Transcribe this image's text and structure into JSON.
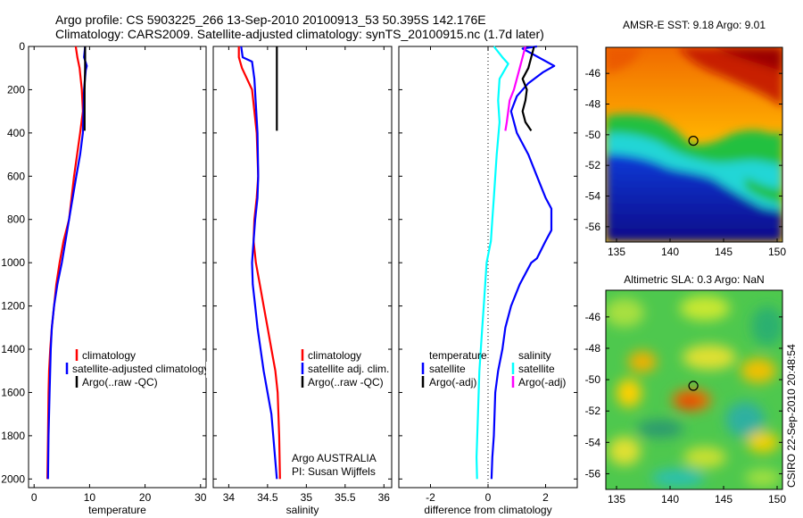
{
  "header": {
    "line1": "Argo profile: CS 5903225_266 13-Sep-2010 20100913_53 50.395S 142.176E",
    "line2": "Climatology: CARS2009. Satellite-adjusted climatology: synTS_20100915.nc (1.7d later)"
  },
  "credit": "CSIRO 22-Sep-2010 20:48:54",
  "colors": {
    "red": "#ff0000",
    "blue": "#0000ff",
    "black": "#000000",
    "cyan": "#00ffff",
    "magenta": "#ff00ff"
  },
  "chart_data": [
    {
      "type": "line",
      "xlabel": "temperature",
      "xlim": [
        -1,
        31
      ],
      "xticks": [
        0,
        10,
        20,
        30
      ],
      "ylim": [
        2040,
        0
      ],
      "yticks": [
        0,
        200,
        400,
        600,
        800,
        1000,
        1200,
        1400,
        1600,
        1800,
        2000
      ],
      "legend": [
        "climatology",
        "satellite-adjusted climatology",
        "Argo(..raw -QC)"
      ],
      "series": [
        {
          "name": "climatology",
          "color": "#ff0000",
          "x": [
            7.5,
            7.8,
            8.2,
            8.6,
            8.8,
            8.3,
            7.2,
            6.3,
            5.3,
            4.6,
            4.0,
            3.6,
            3.2,
            2.9,
            2.7,
            2.6,
            2.5,
            2.4
          ],
          "y": [
            0,
            50,
            100,
            200,
            300,
            400,
            600,
            800,
            900,
            1000,
            1100,
            1200,
            1300,
            1400,
            1500,
            1600,
            1800,
            2000
          ]
        },
        {
          "name": "satellite-adjusted climatology",
          "color": "#0000ff",
          "x": [
            9.2,
            9.0,
            9.5,
            9.3,
            9.0,
            8.8,
            8.3,
            7.6,
            6.3,
            5.0,
            4.2,
            3.6,
            3.2,
            3.0,
            2.8,
            2.6,
            2.5
          ],
          "y": [
            0,
            50,
            90,
            110,
            200,
            400,
            500,
            600,
            800,
            1000,
            1100,
            1200,
            1300,
            1400,
            1600,
            1800,
            2000
          ]
        },
        {
          "name": "Argo(..raw -QC)",
          "color": "#000000",
          "x": [
            9.2,
            9.2,
            9.1,
            9.1
          ],
          "y": [
            0,
            100,
            200,
            390
          ]
        }
      ]
    },
    {
      "type": "line",
      "xlabel": "salinity",
      "xlim": [
        33.8,
        36.1
      ],
      "xticks": [
        34,
        34.5,
        35,
        35.5,
        36
      ],
      "ylim": [
        2040,
        0
      ],
      "yticks": [
        0,
        200,
        400,
        600,
        800,
        1000,
        1200,
        1400,
        1600,
        1800,
        2000
      ],
      "legend": [
        "climatology",
        "satellite adj. clim.",
        "Argo(..raw -QC)"
      ],
      "series": [
        {
          "name": "climatology",
          "color": "#ff0000",
          "x": [
            34.13,
            34.13,
            34.17,
            34.3,
            34.36,
            34.38,
            34.36,
            34.33,
            34.32,
            34.35,
            34.4,
            34.45,
            34.5,
            34.55,
            34.6,
            34.63,
            34.65,
            34.66
          ],
          "y": [
            0,
            50,
            100,
            200,
            400,
            600,
            700,
            800,
            900,
            1000,
            1100,
            1200,
            1300,
            1400,
            1500,
            1600,
            1800,
            2000
          ]
        },
        {
          "name": "satellite adj. clim.",
          "color": "#0000ff",
          "x": [
            34.16,
            34.18,
            34.3,
            34.33,
            34.37,
            34.38,
            34.37,
            34.34,
            34.32,
            34.3,
            34.31,
            34.34,
            34.37,
            34.45,
            34.55,
            34.62
          ],
          "y": [
            0,
            50,
            70,
            150,
            400,
            600,
            700,
            800,
            900,
            1000,
            1100,
            1200,
            1300,
            1500,
            1700,
            2000
          ]
        },
        {
          "name": "Argo(..raw -QC)",
          "color": "#000000",
          "x": [
            34.62,
            34.62,
            34.62,
            34.62
          ],
          "y": [
            0,
            100,
            200,
            390
          ]
        }
      ]
    },
    {
      "type": "line",
      "xlabel": "difference from climatology",
      "xlim": [
        -3.1,
        3.1
      ],
      "xticks": [
        -2,
        0,
        2
      ],
      "ylim": [
        2040,
        0
      ],
      "yticks": [
        0,
        200,
        400,
        600,
        800,
        1000,
        1200,
        1400,
        1600,
        1800,
        2000
      ],
      "legend_groups": [
        {
          "title": "temperature",
          "items": [
            "satellite",
            "Argo(-adj)"
          ]
        },
        {
          "title": "salinity",
          "items": [
            "satellite",
            "Argo(-adj)"
          ]
        }
      ],
      "series": [
        {
          "name": "temperature satellite",
          "color": "#0000ff",
          "x": [
            1.7,
            1.2,
            2.3,
            1.9,
            1.4,
            1.0,
            0.8,
            1.0,
            1.4,
            1.7,
            2.0,
            2.2,
            2.2,
            2.0,
            1.7,
            1.5,
            1.1,
            0.8,
            0.6,
            0.5,
            0.35,
            0.25,
            0.2,
            0.15,
            0.12
          ],
          "y": [
            0,
            10,
            90,
            120,
            170,
            230,
            300,
            400,
            500,
            600,
            700,
            750,
            850,
            900,
            980,
            1000,
            1100,
            1200,
            1300,
            1400,
            1500,
            1600,
            1800,
            1900,
            2000
          ]
        },
        {
          "name": "temperature Argo(-adj)",
          "color": "#000000",
          "x": [
            1.6,
            1.5,
            1.4,
            1.2,
            1.35,
            1.3,
            1.2,
            1.3,
            1.5
          ],
          "y": [
            0,
            50,
            100,
            150,
            200,
            250,
            300,
            350,
            390
          ]
        },
        {
          "name": "salinity satellite",
          "color": "#00ffff",
          "x": [
            0.2,
            0.5,
            0.7,
            0.4,
            0.35,
            0.4,
            0.3,
            0.25,
            0.2,
            0.15,
            0.1,
            -0.05,
            -0.1,
            -0.15,
            -0.2,
            -0.3,
            -0.35,
            -0.4,
            -0.38
          ],
          "y": [
            0,
            50,
            80,
            150,
            250,
            350,
            500,
            600,
            700,
            800,
            900,
            1000,
            1100,
            1200,
            1300,
            1500,
            1700,
            1900,
            2000
          ]
        },
        {
          "name": "salinity Argo(-adj)",
          "color": "#ff00ff",
          "x": [
            1.3,
            1.2,
            1.1,
            0.9,
            0.75,
            0.7,
            0.65,
            0.6
          ],
          "y": [
            0,
            50,
            100,
            200,
            250,
            300,
            350,
            390
          ]
        }
      ]
    },
    {
      "type": "heatmap",
      "title": "AMSR-E SST: 9.18 Argo: 9.01",
      "xlim": [
        134,
        150.5
      ],
      "xticks": [
        135,
        140,
        145,
        150
      ],
      "ylim": [
        -57,
        -44.3
      ],
      "yticks": [
        -46,
        -48,
        -50,
        -52,
        -54,
        -56
      ],
      "marker": {
        "lon": 142.176,
        "lat": -50.395
      }
    },
    {
      "type": "heatmap",
      "title": "Altimetric SLA: 0.3 Argo: NaN",
      "xlim": [
        134,
        150.5
      ],
      "xticks": [
        135,
        140,
        145,
        150
      ],
      "ylim": [
        -57,
        -44.3
      ],
      "yticks": [
        -46,
        -48,
        -50,
        -52,
        -54,
        -56
      ],
      "marker": {
        "lon": 142.176,
        "lat": -50.395
      }
    }
  ]
}
